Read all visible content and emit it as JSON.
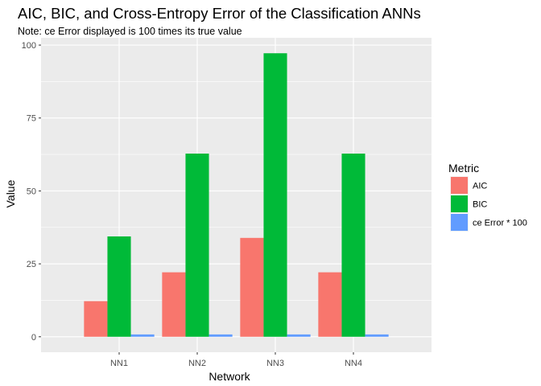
{
  "chart_data": {
    "type": "bar",
    "title": "AIC, BIC, and Cross-Entropy Error of the Classification ANNs",
    "subtitle": "Note: ce Error displayed is 100 times its true value",
    "xlabel": "Network",
    "ylabel": "Value",
    "categories": [
      "NN1",
      "NN2",
      "NN3",
      "NN4"
    ],
    "series": [
      {
        "name": "AIC",
        "color": "#F8766D",
        "values": [
          12.2,
          22.1,
          33.9,
          22.1
        ]
      },
      {
        "name": "BIC",
        "color": "#00BA38",
        "values": [
          34.4,
          62.8,
          97.2,
          62.8
        ]
      },
      {
        "name": "ce Error * 100",
        "color": "#619CFF",
        "values": [
          0.8,
          0.8,
          0.8,
          0.8
        ]
      }
    ],
    "ylim": [
      -5.3,
      102.5
    ],
    "yticks": [
      0,
      25,
      50,
      75,
      100
    ],
    "ytick_labels": [
      "0",
      "25",
      "50",
      "75",
      "100"
    ],
    "grid": true,
    "legend": {
      "title": "Metric",
      "position": "right"
    },
    "panel_background": "#EBEBEB",
    "grid_color": "#FFFFFF"
  }
}
